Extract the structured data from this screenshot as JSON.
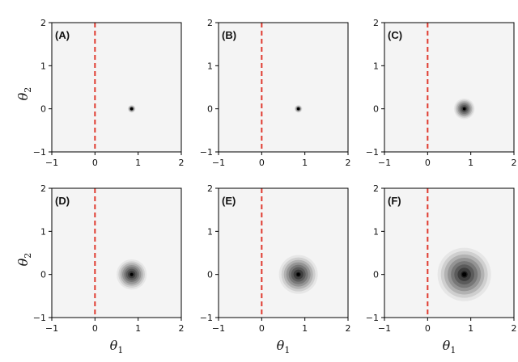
{
  "chart_data": {
    "type": "contour",
    "layout": "2x3 grid",
    "xlabel": "θ",
    "xlabel_sub": "1",
    "ylabel": "θ",
    "ylabel_sub": "2",
    "xlim": [
      -1,
      2
    ],
    "ylim": [
      -1,
      2
    ],
    "xticks": [
      "−1",
      "0",
      "1",
      "2"
    ],
    "yticks": [
      "−1",
      "0",
      "1",
      "2"
    ],
    "boundary_line": {
      "x": 0,
      "color": "#e03a2f",
      "style": "dashed"
    },
    "background_color": "#f4f4f4",
    "panels": [
      {
        "label": "(A)",
        "center": [
          0.85,
          0.0
        ],
        "radius": 0.09
      },
      {
        "label": "(B)",
        "center": [
          0.85,
          0.0
        ],
        "radius": 0.09
      },
      {
        "label": "(C)",
        "center": [
          0.85,
          0.0
        ],
        "radius": 0.24
      },
      {
        "label": "(D)",
        "center": [
          0.85,
          0.0
        ],
        "radius": 0.35
      },
      {
        "label": "(E)",
        "center": [
          0.85,
          0.0
        ],
        "radius": 0.45
      },
      {
        "label": "(F)",
        "center": [
          0.85,
          0.0
        ],
        "radius": 0.62
      }
    ],
    "contour_levels": [
      "#e6e6e6",
      "#cfcfcf",
      "#b2b2b2",
      "#949494",
      "#777777",
      "#5b5b5b",
      "#3d3d3d",
      "#1c1c1c"
    ]
  }
}
